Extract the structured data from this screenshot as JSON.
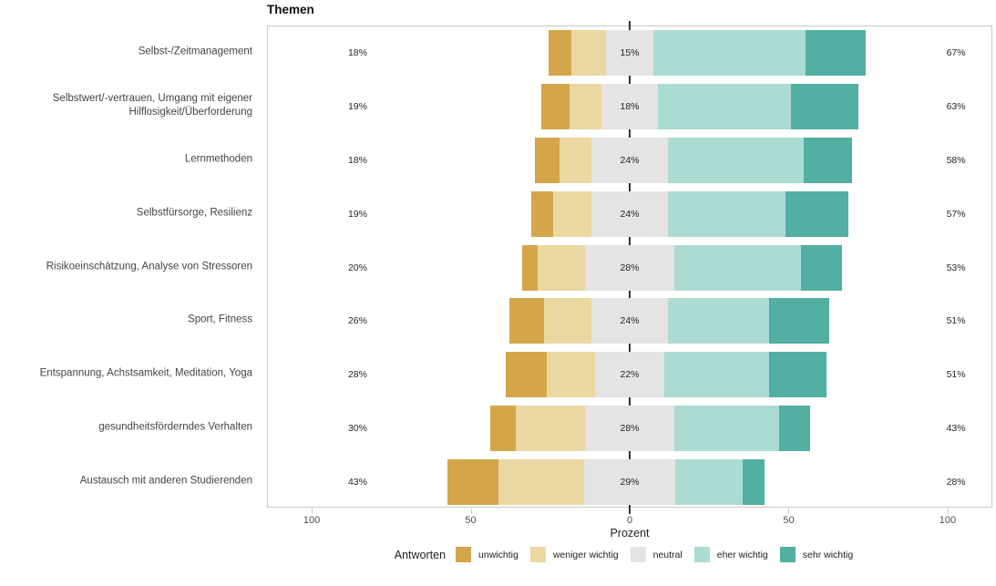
{
  "chart_data": {
    "type": "diverging-stacked-bar",
    "title": "Themen",
    "xlabel": "Prozent",
    "xlim": [
      -114,
      114
    ],
    "grid": false,
    "legend_position": "bottom",
    "legend_title": "Antworten",
    "neutral_split_across_zero": true,
    "levels": [
      {
        "name": "unwichtig",
        "color": "#D3A64A"
      },
      {
        "name": "weniger wichtig",
        "color": "#EBD7A2"
      },
      {
        "name": "neutral",
        "color": "#E4E4E4"
      },
      {
        "name": "eher wichtig",
        "color": "#ABDBD3"
      },
      {
        "name": "sehr wichtig",
        "color": "#52AFA1"
      }
    ],
    "x_ticks": [
      {
        "value": -100,
        "label": "100"
      },
      {
        "value": -50,
        "label": "50"
      },
      {
        "value": 0,
        "label": "0"
      },
      {
        "value": 50,
        "label": "50"
      },
      {
        "value": 100,
        "label": "100"
      }
    ],
    "rows": [
      {
        "category": "Selbst-/Zeitmanagement",
        "values": [
          7,
          11,
          15,
          48,
          19
        ],
        "labels": {
          "low": "18%",
          "neutral": "15%",
          "high": "67%"
        }
      },
      {
        "category": "Selbstwert/-vertrauen, Umgang mit eigener Hilflosigkeit/Überforderung",
        "values": [
          9,
          10,
          18,
          42,
          21
        ],
        "labels": {
          "low": "19%",
          "neutral": "18%",
          "high": "63%"
        }
      },
      {
        "category": "Lernmethoden",
        "values": [
          8,
          10,
          24,
          43,
          15
        ],
        "labels": {
          "low": "18%",
          "neutral": "24%",
          "high": "58%"
        }
      },
      {
        "category": "Selbstfürsorge, Resilienz",
        "values": [
          7,
          12,
          24,
          37,
          20
        ],
        "labels": {
          "low": "19%",
          "neutral": "24%",
          "high": "57%"
        }
      },
      {
        "category": "Risikoeinschätzung, Analyse von Stressoren",
        "values": [
          5,
          15,
          28,
          40,
          13
        ],
        "labels": {
          "low": "20%",
          "neutral": "28%",
          "high": "53%"
        }
      },
      {
        "category": "Sport, Fitness",
        "values": [
          11,
          15,
          24,
          32,
          19
        ],
        "labels": {
          "low": "26%",
          "neutral": "24%",
          "high": "51%"
        }
      },
      {
        "category": "Entspannung, Achstsamkeit, Meditation, Yoga",
        "values": [
          13,
          15,
          22,
          33,
          18
        ],
        "labels": {
          "low": "28%",
          "neutral": "22%",
          "high": "51%"
        }
      },
      {
        "category": "gesundheitsförderndes Verhalten",
        "values": [
          8,
          22,
          28,
          33,
          10
        ],
        "labels": {
          "low": "30%",
          "neutral": "28%",
          "high": "43%"
        }
      },
      {
        "category": "Austausch mit anderen Studierenden",
        "values": [
          16,
          27,
          29,
          21,
          7
        ],
        "labels": {
          "low": "43%",
          "neutral": "29%",
          "high": "28%"
        }
      }
    ]
  }
}
